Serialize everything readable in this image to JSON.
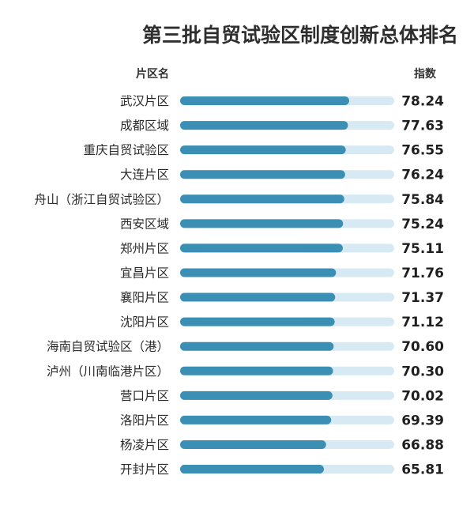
{
  "chart_data": {
    "type": "bar",
    "orientation": "horizontal",
    "title": "第三批自贸试验区制度创新总体排名",
    "category_header": "片区名",
    "value_header": "指数",
    "categories": [
      "武汉片区",
      "成都区域",
      "重庆自贸试验区",
      "大连片区",
      "舟山（浙江自贸试验区）",
      "西安区域",
      "郑州片区",
      "宜昌片区",
      "襄阳片区",
      "沈阳片区",
      "海南自贸试验区（港）",
      "泸州（川南临港片区）",
      "营口片区",
      "洛阳片区",
      "杨凌片区",
      "开封片区"
    ],
    "values": [
      78.24,
      77.63,
      76.55,
      76.24,
      75.84,
      75.24,
      75.11,
      71.76,
      71.37,
      71.12,
      70.6,
      70.3,
      70.02,
      69.39,
      66.88,
      65.81
    ],
    "value_labels": [
      "78.24",
      "77.63",
      "76.55",
      "76.24",
      "75.84",
      "75.24",
      "75.11",
      "71.76",
      "71.37",
      "71.12",
      "70.60",
      "70.30",
      "70.02",
      "69.39",
      "66.88",
      "65.81"
    ],
    "bar_color": "#3b8fb5",
    "track_color": "#d7eaf3",
    "xlim": [
      0,
      100
    ],
    "grid": false,
    "legend": "none"
  }
}
